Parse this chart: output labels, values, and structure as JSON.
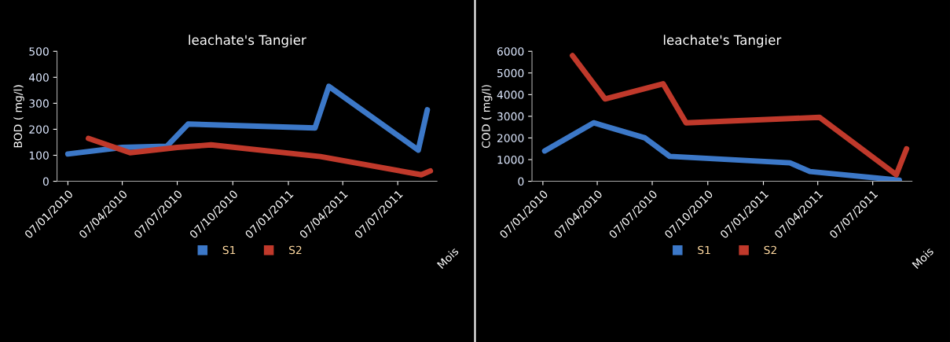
{
  "chart_data": [
    {
      "type": "line",
      "title": "leachate's Tangier",
      "xlabel": "Mois",
      "ylabel": "BOD ( mg/l)",
      "ylim": [
        0,
        500
      ],
      "yticks": [
        0,
        100,
        200,
        300,
        400,
        500
      ],
      "xlim": [
        "2009-12-20",
        "2011-09-10"
      ],
      "xticks": [
        {
          "value": "2010-01-07",
          "label": "07/01/2010"
        },
        {
          "value": "2010-04-07",
          "label": "07/04/2010"
        },
        {
          "value": "2010-07-07",
          "label": "07/07/2010"
        },
        {
          "value": "2010-10-07",
          "label": "07/10/2010"
        },
        {
          "value": "2011-01-07",
          "label": "07/01/2011"
        },
        {
          "value": "2011-04-07",
          "label": "07/04/2011"
        },
        {
          "value": "2011-07-07",
          "label": "07/07/2011"
        }
      ],
      "grid": false,
      "legend": "bottom",
      "series": [
        {
          "name": "S1",
          "color": "#3c78c8",
          "x": [
            "2010-01-07",
            "2010-04-07",
            "2010-06-20",
            "2010-07-25",
            "2011-02-20",
            "2011-03-15",
            "2011-08-10",
            "2011-08-25"
          ],
          "values": [
            105,
            130,
            135,
            220,
            205,
            365,
            120,
            275
          ]
        },
        {
          "name": "S2",
          "color": "#c0392b",
          "x": [
            "2010-02-10",
            "2010-04-20",
            "2010-07-07",
            "2010-09-01",
            "2011-03-01",
            "2011-08-15",
            "2011-08-30"
          ],
          "values": [
            165,
            110,
            130,
            140,
            95,
            25,
            40
          ]
        }
      ]
    },
    {
      "type": "line",
      "title": "leachate's Tangier",
      "xlabel": "Mois",
      "ylabel": "COD ( mg/l)",
      "ylim": [
        0,
        6000
      ],
      "yticks": [
        0,
        1000,
        2000,
        3000,
        4000,
        5000,
        6000
      ],
      "xlim": [
        "2009-12-20",
        "2011-09-10"
      ],
      "xticks": [
        {
          "value": "2010-01-07",
          "label": "07/01/2010"
        },
        {
          "value": "2010-04-07",
          "label": "07/04/2010"
        },
        {
          "value": "2010-07-07",
          "label": "07/07/2010"
        },
        {
          "value": "2010-10-07",
          "label": "07/10/2010"
        },
        {
          "value": "2011-01-07",
          "label": "07/01/2011"
        },
        {
          "value": "2011-04-07",
          "label": "07/04/2011"
        },
        {
          "value": "2011-07-07",
          "label": "07/07/2011"
        }
      ],
      "grid": false,
      "legend": "bottom",
      "series": [
        {
          "name": "S1",
          "color": "#3c78c8",
          "x": [
            "2010-01-10",
            "2010-04-01",
            "2010-06-25",
            "2010-08-05",
            "2011-02-20",
            "2011-03-25",
            "2011-08-20"
          ],
          "values": [
            1400,
            2700,
            2000,
            1150,
            850,
            450,
            50
          ]
        },
        {
          "name": "S2",
          "color": "#c0392b",
          "x": [
            "2010-02-25",
            "2010-04-20",
            "2010-07-25",
            "2010-09-01",
            "2011-04-10",
            "2011-08-15",
            "2011-09-01"
          ],
          "values": [
            5800,
            3800,
            4500,
            2700,
            2950,
            300,
            1500
          ]
        }
      ]
    }
  ]
}
